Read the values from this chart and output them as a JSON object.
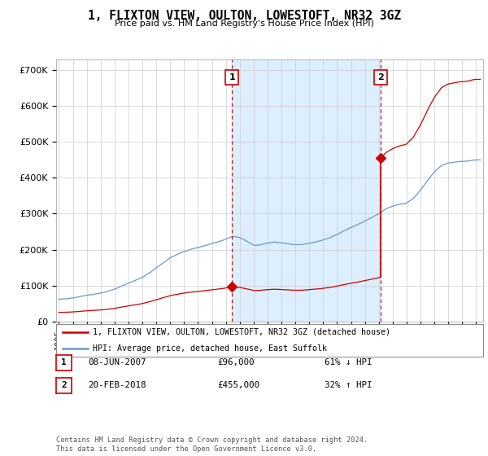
{
  "title": "1, FLIXTON VIEW, OULTON, LOWESTOFT, NR32 3GZ",
  "subtitle": "Price paid vs. HM Land Registry's House Price Index (HPI)",
  "ylabel_ticks": [
    "£0",
    "£100K",
    "£200K",
    "£300K",
    "£400K",
    "£500K",
    "£600K",
    "£700K"
  ],
  "ytick_values": [
    0,
    100000,
    200000,
    300000,
    400000,
    500000,
    600000,
    700000
  ],
  "ylim": [
    0,
    730000
  ],
  "xlim_start": 1994.8,
  "xlim_end": 2025.5,
  "t1_x": 2007.44,
  "t1_price": 96000,
  "t2_x": 2018.13,
  "t2_price": 455000,
  "legend_line1": "1, FLIXTON VIEW, OULTON, LOWESTOFT, NR32 3GZ (detached house)",
  "legend_line2": "HPI: Average price, detached house, East Suffolk",
  "footnote": "Contains HM Land Registry data © Crown copyright and database right 2024.\nThis data is licensed under the Open Government Licence v3.0.",
  "line_color_price": "#cc0000",
  "line_color_hpi": "#6699cc",
  "shade_color": "#ddeeff",
  "grid_color": "#cccccc",
  "background_color": "#ffffff",
  "table_row1": [
    "1",
    "08-JUN-2007",
    "£96,000",
    "61% ↓ HPI"
  ],
  "table_row2": [
    "2",
    "20-FEB-2018",
    "£455,000",
    "32% ↑ HPI"
  ]
}
